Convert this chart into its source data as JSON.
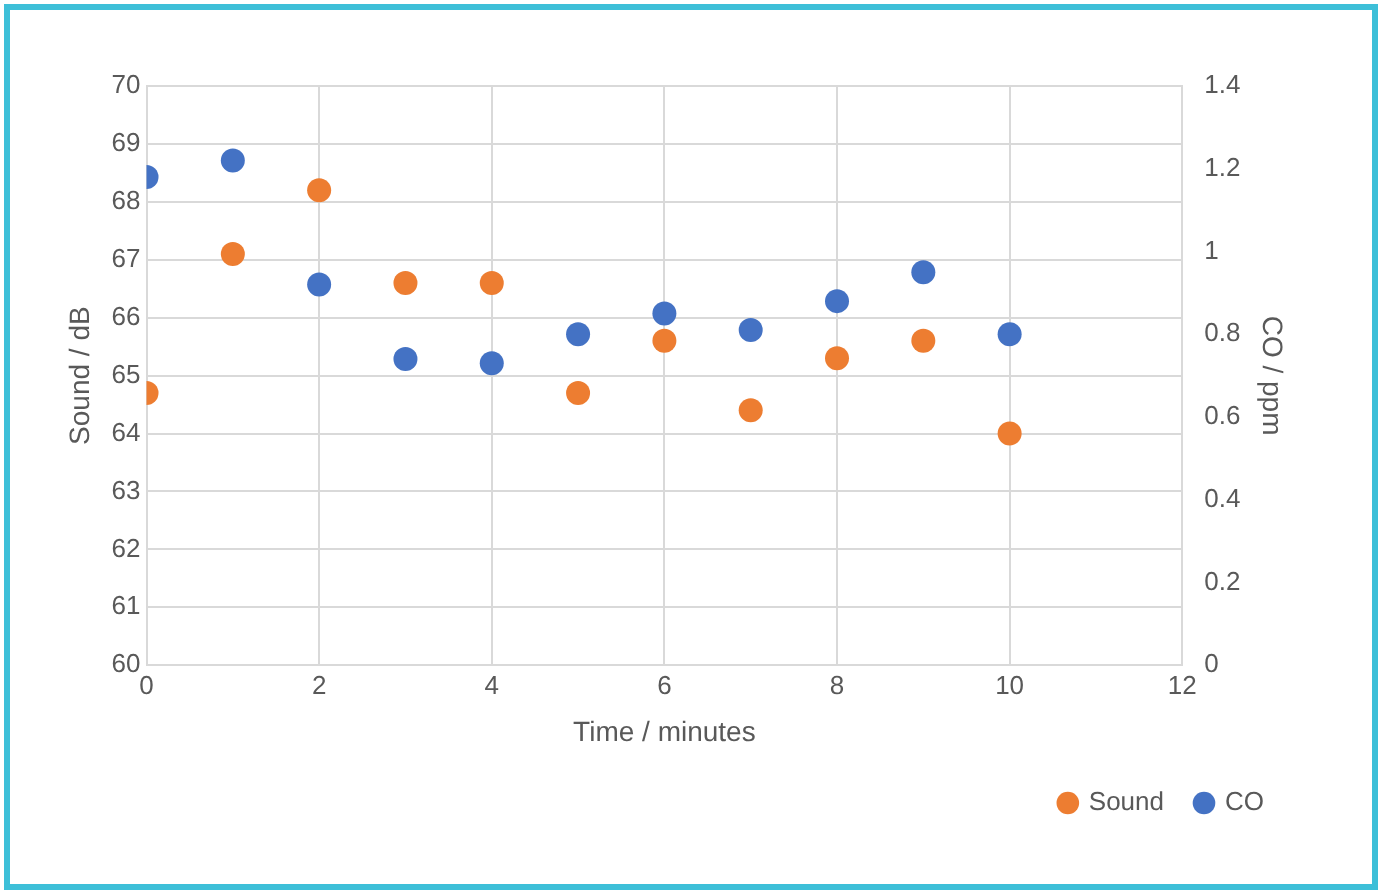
{
  "chart_data": {
    "type": "scatter",
    "xlabel": "Time / minutes",
    "ylabel": "Sound / dB",
    "y2label": "CO / ppm",
    "x": [
      0,
      1,
      2,
      3,
      4,
      5,
      6,
      7,
      8,
      9,
      10
    ],
    "series": [
      {
        "name": "Sound",
        "color": "#ed7d31",
        "values": [
          64.7,
          67.1,
          68.2,
          66.6,
          66.6,
          64.7,
          65.6,
          64.4,
          65.3,
          65.6,
          64.0
        ]
      },
      {
        "name": "CO",
        "color": "#4472c4",
        "axis": "y2",
        "values": [
          1.18,
          1.22,
          0.92,
          0.74,
          0.73,
          0.8,
          0.85,
          0.81,
          0.88,
          0.95,
          0.8
        ]
      }
    ],
    "xlim": [
      0,
      12
    ],
    "xticks": [
      0,
      2,
      4,
      6,
      8,
      10,
      12
    ],
    "ylim": [
      60,
      70
    ],
    "yticks": [
      60,
      61,
      62,
      63,
      64,
      65,
      66,
      67,
      68,
      69,
      70
    ],
    "y2lim": [
      0,
      1.4
    ],
    "y2ticks": [
      0,
      0.2,
      0.4,
      0.6,
      0.8,
      1,
      1.2,
      1.4
    ],
    "grid": true,
    "legend": "bottom right",
    "marker": "circle"
  }
}
